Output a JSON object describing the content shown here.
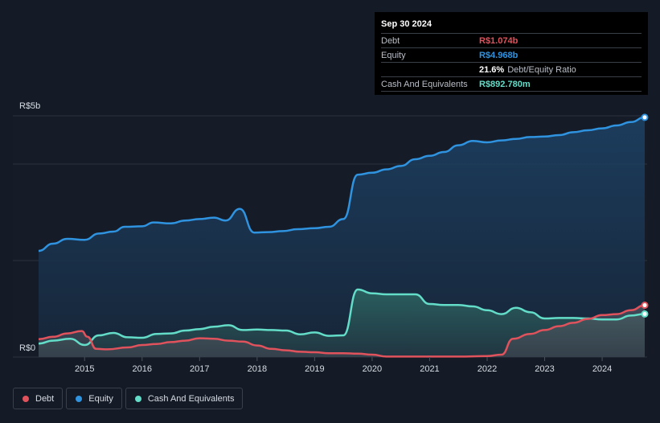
{
  "colors": {
    "debt": "#e0525c",
    "equity": "#2f93e0",
    "cash": "#63dcc8",
    "grid": "#2c323d",
    "text": "#d7dbe2"
  },
  "tooltip": {
    "date": "Sep 30 2024",
    "debt_label": "Debt",
    "debt_value": "R$1.074b",
    "equity_label": "Equity",
    "equity_value": "R$4.968b",
    "ratio_value": "21.6%",
    "ratio_label": "Debt/Equity Ratio",
    "cash_label": "Cash And Equivalents",
    "cash_value": "R$892.780m"
  },
  "legend": {
    "debt": "Debt",
    "equity": "Equity",
    "cash": "Cash And Equivalents"
  },
  "chart_data": {
    "type": "area",
    "y_unit": "R$ billions",
    "ylim": [
      0,
      5
    ],
    "y_tick_labels": [
      {
        "value": 5,
        "label": "R$5b"
      },
      {
        "value": 0,
        "label": "R$0"
      }
    ],
    "gridlines": [
      0,
      2,
      4,
      5
    ],
    "xlim": [
      2014.15,
      2024.75
    ],
    "x_ticks": [
      2015,
      2016,
      2017,
      2018,
      2019,
      2020,
      2021,
      2022,
      2023,
      2024
    ],
    "series": [
      {
        "name": "Equity",
        "key": "equity",
        "points": [
          [
            2014.2,
            2.2
          ],
          [
            2014.45,
            2.35
          ],
          [
            2014.7,
            2.45
          ],
          [
            2015.0,
            2.43
          ],
          [
            2015.25,
            2.56
          ],
          [
            2015.5,
            2.6
          ],
          [
            2015.7,
            2.7
          ],
          [
            2016.0,
            2.71
          ],
          [
            2016.2,
            2.79
          ],
          [
            2016.5,
            2.77
          ],
          [
            2016.75,
            2.83
          ],
          [
            2017.0,
            2.86
          ],
          [
            2017.25,
            2.89
          ],
          [
            2017.45,
            2.83
          ],
          [
            2017.7,
            3.07
          ],
          [
            2017.95,
            2.58
          ],
          [
            2018.2,
            2.59
          ],
          [
            2018.45,
            2.61
          ],
          [
            2018.7,
            2.65
          ],
          [
            2019.0,
            2.67
          ],
          [
            2019.25,
            2.7
          ],
          [
            2019.5,
            2.86
          ],
          [
            2019.75,
            3.78
          ],
          [
            2020.0,
            3.82
          ],
          [
            2020.25,
            3.89
          ],
          [
            2020.5,
            3.96
          ],
          [
            2020.75,
            4.1
          ],
          [
            2021.0,
            4.17
          ],
          [
            2021.25,
            4.25
          ],
          [
            2021.5,
            4.39
          ],
          [
            2021.75,
            4.48
          ],
          [
            2022.0,
            4.45
          ],
          [
            2022.25,
            4.49
          ],
          [
            2022.5,
            4.52
          ],
          [
            2022.75,
            4.56
          ],
          [
            2023.0,
            4.57
          ],
          [
            2023.25,
            4.6
          ],
          [
            2023.5,
            4.66
          ],
          [
            2023.75,
            4.7
          ],
          [
            2024.0,
            4.74
          ],
          [
            2024.25,
            4.8
          ],
          [
            2024.5,
            4.87
          ],
          [
            2024.74,
            4.968
          ]
        ]
      },
      {
        "name": "Cash And Equivalents",
        "key": "cash",
        "points": [
          [
            2014.2,
            0.28
          ],
          [
            2014.45,
            0.34
          ],
          [
            2014.75,
            0.38
          ],
          [
            2015.0,
            0.25
          ],
          [
            2015.25,
            0.45
          ],
          [
            2015.5,
            0.5
          ],
          [
            2015.75,
            0.41
          ],
          [
            2016.0,
            0.4
          ],
          [
            2016.25,
            0.48
          ],
          [
            2016.5,
            0.49
          ],
          [
            2016.75,
            0.55
          ],
          [
            2017.0,
            0.58
          ],
          [
            2017.25,
            0.63
          ],
          [
            2017.5,
            0.66
          ],
          [
            2017.75,
            0.56
          ],
          [
            2018.0,
            0.57
          ],
          [
            2018.25,
            0.56
          ],
          [
            2018.5,
            0.55
          ],
          [
            2018.75,
            0.47
          ],
          [
            2019.0,
            0.51
          ],
          [
            2019.25,
            0.44
          ],
          [
            2019.5,
            0.45
          ],
          [
            2019.75,
            1.4
          ],
          [
            2020.0,
            1.32
          ],
          [
            2020.25,
            1.3
          ],
          [
            2020.5,
            1.3
          ],
          [
            2020.75,
            1.3
          ],
          [
            2021.0,
            1.1
          ],
          [
            2021.25,
            1.08
          ],
          [
            2021.5,
            1.08
          ],
          [
            2021.75,
            1.05
          ],
          [
            2022.0,
            0.97
          ],
          [
            2022.25,
            0.89
          ],
          [
            2022.5,
            1.02
          ],
          [
            2022.75,
            0.93
          ],
          [
            2023.0,
            0.8
          ],
          [
            2023.25,
            0.81
          ],
          [
            2023.5,
            0.81
          ],
          [
            2023.75,
            0.8
          ],
          [
            2024.0,
            0.78
          ],
          [
            2024.25,
            0.78
          ],
          [
            2024.5,
            0.86
          ],
          [
            2024.74,
            0.893
          ]
        ]
      },
      {
        "name": "Debt",
        "key": "debt",
        "points": [
          [
            2014.2,
            0.37
          ],
          [
            2014.45,
            0.42
          ],
          [
            2014.7,
            0.49
          ],
          [
            2014.95,
            0.54
          ],
          [
            2015.05,
            0.42
          ],
          [
            2015.2,
            0.17
          ],
          [
            2015.4,
            0.16
          ],
          [
            2015.75,
            0.2
          ],
          [
            2016.0,
            0.25
          ],
          [
            2016.25,
            0.27
          ],
          [
            2016.5,
            0.31
          ],
          [
            2016.75,
            0.34
          ],
          [
            2017.0,
            0.39
          ],
          [
            2017.25,
            0.38
          ],
          [
            2017.5,
            0.34
          ],
          [
            2017.75,
            0.32
          ],
          [
            2018.0,
            0.24
          ],
          [
            2018.25,
            0.17
          ],
          [
            2018.5,
            0.14
          ],
          [
            2018.75,
            0.11
          ],
          [
            2019.0,
            0.1
          ],
          [
            2019.25,
            0.08
          ],
          [
            2019.5,
            0.08
          ],
          [
            2019.75,
            0.07
          ],
          [
            2020.0,
            0.05
          ],
          [
            2020.25,
            0.01
          ],
          [
            2020.5,
            0.01
          ],
          [
            2021.0,
            0.01
          ],
          [
            2021.5,
            0.01
          ],
          [
            2022.0,
            0.02
          ],
          [
            2022.25,
            0.05
          ],
          [
            2022.45,
            0.38
          ],
          [
            2022.75,
            0.48
          ],
          [
            2023.0,
            0.56
          ],
          [
            2023.25,
            0.64
          ],
          [
            2023.5,
            0.71
          ],
          [
            2023.75,
            0.79
          ],
          [
            2024.0,
            0.87
          ],
          [
            2024.25,
            0.89
          ],
          [
            2024.5,
            0.97
          ],
          [
            2024.74,
            1.074
          ]
        ]
      }
    ]
  }
}
